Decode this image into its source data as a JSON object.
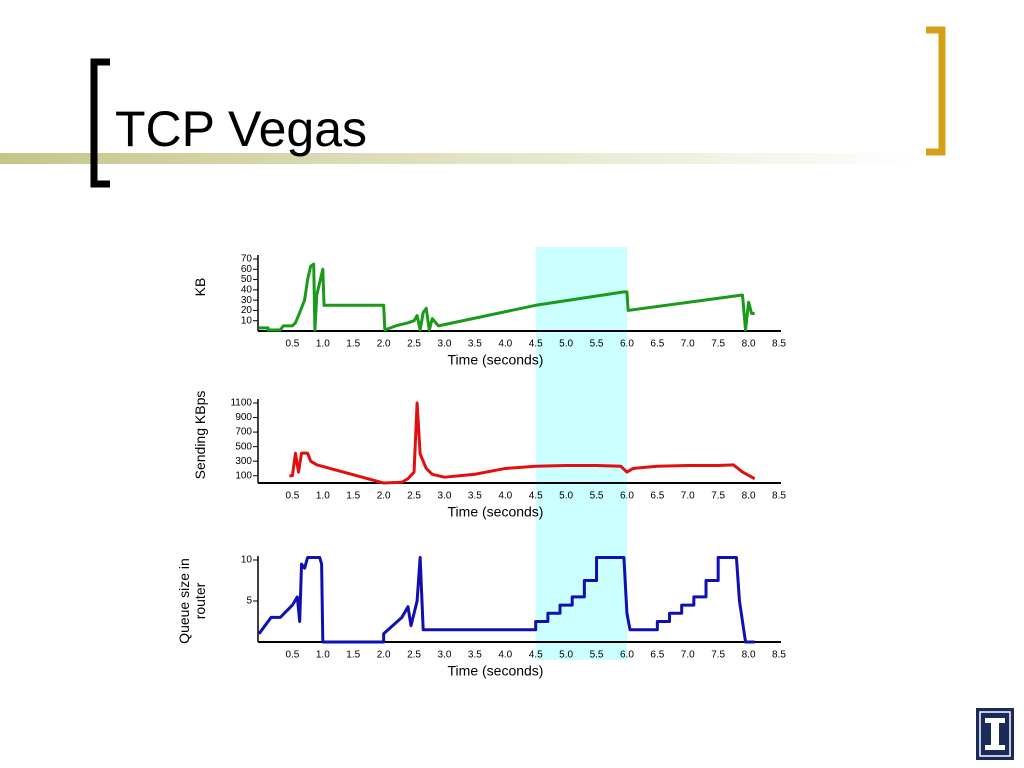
{
  "title": "TCP Vegas",
  "highlight_x": [
    4.5,
    6.0
  ],
  "chart_data": [
    {
      "type": "line",
      "ylabel": "KB",
      "xlabel": "Time (seconds)",
      "color": "#1a9a1a",
      "xlim": [
        0,
        8.5
      ],
      "ylim": [
        0,
        70
      ],
      "yticks": [
        10,
        20,
        30,
        40,
        50,
        60,
        70
      ],
      "xticks": [
        0.5,
        {
          "value": 1,
          "label": "1.0"
        },
        1.5,
        {
          "value": 2,
          "label": "2.0"
        },
        2.5,
        {
          "value": 3,
          "label": "3.0"
        },
        3.5,
        {
          "value": 4,
          "label": "4.0"
        },
        4.5,
        {
          "value": 5,
          "label": "5.0"
        },
        5.5,
        {
          "value": 6,
          "label": "6.0"
        },
        6.5,
        {
          "value": 7,
          "label": "7.0"
        },
        7.5,
        {
          "value": 8,
          "label": "8.0"
        },
        8.5
      ],
      "x": [
        -0.05,
        0.1,
        0.1,
        0.3,
        0.35,
        0.5,
        0.55,
        0.6,
        0.7,
        0.75,
        0.8,
        0.85,
        0.87,
        0.9,
        1.0,
        1.02,
        2.0,
        2.02,
        2.2,
        2.4,
        2.5,
        2.55,
        2.6,
        2.65,
        2.7,
        2.75,
        2.8,
        2.9,
        4.5,
        5.95,
        6.0,
        6.02,
        7.9,
        7.95,
        8.0,
        8.05,
        8.1
      ],
      "values": [
        3,
        3,
        1,
        1,
        5,
        5,
        8,
        15,
        30,
        50,
        63,
        65,
        1,
        35,
        60,
        25,
        25,
        1,
        5,
        8,
        10,
        15,
        1,
        18,
        22,
        1,
        12,
        5,
        25,
        38,
        38,
        20,
        35,
        1,
        28,
        17,
        17
      ]
    },
    {
      "type": "line",
      "ylabel": "Sending KBps",
      "xlabel": "Time (seconds)",
      "color": "#e01010",
      "xlim": [
        0,
        8.5
      ],
      "ylim": [
        0,
        1100
      ],
      "yticks": [
        100,
        300,
        500,
        700,
        900,
        1100
      ],
      "xticks": [
        0.5,
        {
          "value": 1,
          "label": "1.0"
        },
        1.5,
        {
          "value": 2,
          "label": "2.0"
        },
        2.5,
        {
          "value": 3,
          "label": "3.0"
        },
        3.5,
        {
          "value": 4,
          "label": "4.0"
        },
        4.5,
        {
          "value": 5,
          "label": "5.0"
        },
        5.5,
        {
          "value": 6,
          "label": "6.0"
        },
        6.5,
        {
          "value": 7,
          "label": "7.0"
        },
        7.5,
        {
          "value": 8,
          "label": "8.0"
        },
        8.5
      ],
      "x": [
        0.45,
        0.5,
        0.55,
        0.6,
        0.65,
        0.75,
        0.8,
        0.9,
        2.0,
        2.3,
        2.4,
        2.5,
        2.55,
        2.6,
        2.7,
        2.8,
        3.0,
        3.5,
        4.0,
        4.5,
        5.0,
        5.5,
        5.9,
        6.0,
        6.1,
        6.5,
        7.0,
        7.5,
        7.75,
        7.9,
        8.1
      ],
      "values": [
        100,
        100,
        410,
        150,
        410,
        410,
        300,
        250,
        0,
        10,
        60,
        150,
        1100,
        400,
        200,
        120,
        80,
        120,
        200,
        230,
        240,
        240,
        230,
        150,
        200,
        230,
        240,
        240,
        250,
        150,
        60
      ]
    },
    {
      "type": "line",
      "ylabel": "Queue size in router",
      "xlabel": "Time (seconds)",
      "color": "#1010b0",
      "xlim": [
        0,
        8.5
      ],
      "ylim": [
        0,
        10
      ],
      "yticks": [
        5,
        10
      ],
      "xticks": [
        0.5,
        {
          "value": 1,
          "label": "1.0"
        },
        1.5,
        {
          "value": 2,
          "label": "2.0"
        },
        2.5,
        {
          "value": 3,
          "label": "3.0"
        },
        3.5,
        {
          "value": 4,
          "label": "4.0"
        },
        4.5,
        {
          "value": 5,
          "label": "5.0"
        },
        5.5,
        {
          "value": 6,
          "label": "6.0"
        },
        6.5,
        {
          "value": 7,
          "label": "7.0"
        },
        7.5,
        {
          "value": 8,
          "label": "8.0"
        },
        8.5
      ],
      "x": [
        -0.05,
        0.15,
        0.3,
        0.5,
        0.58,
        0.62,
        0.65,
        0.7,
        0.75,
        0.95,
        0.98,
        1.0,
        2.0,
        2.0,
        2.3,
        2.4,
        2.45,
        2.55,
        2.6,
        2.65,
        4.5,
        4.5,
        4.7,
        4.7,
        4.9,
        4.9,
        5.1,
        5.1,
        5.3,
        5.3,
        5.5,
        5.5,
        5.95,
        6.0,
        6.05,
        6.5,
        6.5,
        6.7,
        6.7,
        6.9,
        6.9,
        7.1,
        7.1,
        7.3,
        7.3,
        7.5,
        7.5,
        7.8,
        7.85,
        7.95,
        8.1
      ],
      "values": [
        1,
        3,
        3,
        4.5,
        5.5,
        2.5,
        9.5,
        9,
        10.3,
        10.3,
        9.5,
        0,
        0,
        1,
        3,
        4.3,
        2,
        5,
        10.3,
        1.5,
        1.5,
        2.5,
        2.5,
        3.5,
        3.5,
        4.5,
        4.5,
        5.5,
        5.5,
        7.5,
        7.5,
        10.3,
        10.3,
        3.5,
        1.5,
        1.5,
        2.5,
        2.5,
        3.5,
        3.5,
        4.5,
        4.5,
        5.5,
        5.5,
        7.5,
        7.5,
        10.3,
        10.3,
        5,
        0,
        0
      ]
    }
  ]
}
